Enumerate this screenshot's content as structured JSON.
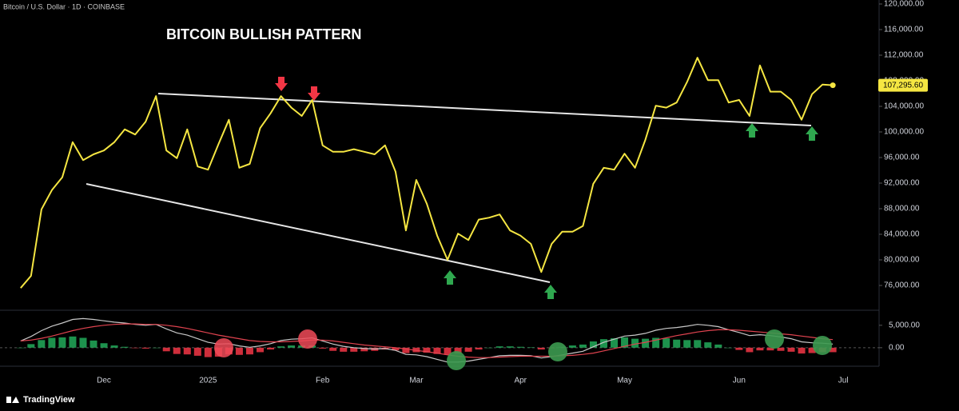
{
  "header": "Bitcoin / U.S. Dollar · 1D · COINBASE",
  "brand": "TradingView",
  "chart_data": [
    {
      "type": "line",
      "title": "BITCOIN BULLISH PATTERN",
      "categories": [
        null,
        null,
        null,
        null,
        null,
        null,
        null,
        null,
        "Dec",
        null,
        null,
        null,
        null,
        null,
        null,
        null,
        null,
        null,
        "2025",
        null,
        null,
        null,
        null,
        null,
        null,
        null,
        null,
        null,
        null,
        "Feb",
        null,
        null,
        null,
        null,
        null,
        null,
        null,
        null,
        "Mar",
        null,
        null,
        null,
        null,
        null,
        null,
        null,
        null,
        null,
        "Apr",
        null,
        null,
        null,
        null,
        null,
        null,
        null,
        null,
        null,
        "May",
        null,
        null,
        null,
        null,
        null,
        null,
        null,
        null,
        null,
        null,
        "Jun",
        null,
        null,
        null,
        null,
        null,
        null,
        null,
        null,
        null,
        "Jul"
      ],
      "series": [
        {
          "color": "#f5e642",
          "values": [
            75600,
            77500,
            87900,
            90900,
            92900,
            98400,
            95600,
            96500,
            97100,
            98400,
            100400,
            99600,
            101600,
            105600,
            97100,
            95900,
            100400,
            94600,
            94100,
            98100,
            101900,
            94400,
            95000,
            100600,
            102900,
            105600,
            103800,
            102500,
            105000,
            97900,
            96900,
            96900,
            97300,
            96900,
            96500,
            97900,
            93800,
            84600,
            92500,
            88800,
            83800,
            80000,
            84100,
            83100,
            86300,
            86600,
            87100,
            84600,
            83800,
            82500,
            78100,
            82500,
            84400,
            84400,
            85300,
            91900,
            94400,
            94100,
            96600,
            94400,
            98800,
            104100,
            103800,
            104600,
            107800,
            111600,
            108100,
            108100,
            104600,
            105000,
            102500,
            110400,
            106300,
            106300,
            105000,
            101900,
            105900,
            107400,
            107295.6,
            null
          ]
        }
      ],
      "last_label": "107,295.60",
      "ylim": [
        72500,
        120625
      ],
      "yticks": [
        {
          "value": 76000,
          "label": "76,000.00"
        },
        {
          "value": 80000,
          "label": "80,000.00"
        },
        {
          "value": 84000,
          "label": "84,000.00"
        },
        {
          "value": 88000,
          "label": "88,000.00"
        },
        {
          "value": 92000,
          "label": "92,000.00"
        },
        {
          "value": 96000,
          "label": "96,000.00"
        },
        {
          "value": 100000,
          "label": "100,000.00"
        },
        {
          "value": 104000,
          "label": "104,000.00"
        },
        {
          "value": 108000,
          "label": "108,000.00"
        },
        {
          "value": 112000,
          "label": "112,000.00"
        },
        {
          "value": 116000,
          "label": "116,000.00"
        },
        {
          "value": 120000,
          "label": "120,000.00"
        }
      ]
    },
    {
      "type": "macd",
      "series": [
        {
          "color": "#c8c8c8",
          "values": [
            1500,
            2500,
            3800,
            4800,
            5500,
            6300,
            6500,
            6300,
            6000,
            5700,
            5500,
            5200,
            5000,
            5200,
            4200,
            3300,
            2800,
            2000,
            1200,
            800,
            900,
            400,
            100,
            400,
            900,
            1600,
            1900,
            2000,
            2200,
            1500,
            800,
            300,
            0,
            -200,
            -300,
            -200,
            -600,
            -1500,
            -1600,
            -2000,
            -2600,
            -3200,
            -3200,
            -3000,
            -2600,
            -2200,
            -1800,
            -1700,
            -1700,
            -1800,
            -2300,
            -2000,
            -1600,
            -1200,
            -800,
            200,
            1200,
            1900,
            2600,
            2800,
            3200,
            3900,
            4300,
            4500,
            4800,
            5200,
            5000,
            4700,
            4000,
            3400,
            2700,
            2900,
            2700,
            2400,
            2000,
            1300,
            1100,
            1000,
            800
          ]
        },
        {
          "color": "#e0434f",
          "values": [
            1500,
            1700,
            2100,
            2600,
            3200,
            3800,
            4300,
            4700,
            5000,
            5200,
            5300,
            5300,
            5200,
            5200,
            5000,
            4700,
            4300,
            3800,
            3300,
            2800,
            2400,
            2000,
            1600,
            1400,
            1300,
            1300,
            1400,
            1500,
            1700,
            1700,
            1500,
            1200,
            900,
            600,
            400,
            200,
            0,
            -300,
            -600,
            -900,
            -1200,
            -1600,
            -1900,
            -2100,
            -2200,
            -2200,
            -2100,
            -2000,
            -1900,
            -1900,
            -1900,
            -1900,
            -1800,
            -1700,
            -1500,
            -1200,
            -700,
            -200,
            300,
            800,
            1200,
            1700,
            2200,
            2700,
            3100,
            3500,
            3800,
            4000,
            4000,
            3900,
            3700,
            3500,
            3300,
            3100,
            2900,
            2600,
            2300,
            2000,
            1800
          ]
        }
      ],
      "histogram": [
        0,
        800,
        1700,
        2200,
        2300,
        2500,
        2200,
        1600,
        1000,
        500,
        200,
        -100,
        -200,
        0,
        -800,
        -1400,
        -1500,
        -1800,
        -2100,
        -2000,
        -1500,
        -1600,
        -1500,
        -1000,
        -400,
        300,
        500,
        500,
        500,
        -200,
        -700,
        -900,
        -900,
        -800,
        -700,
        -400,
        -600,
        -1200,
        -1000,
        -1100,
        -1400,
        -1600,
        -1300,
        -900,
        -400,
        0,
        300,
        300,
        200,
        100,
        -400,
        -100,
        200,
        500,
        700,
        1400,
        1900,
        2100,
        2300,
        2000,
        2000,
        2200,
        2100,
        1800,
        1700,
        1700,
        1200,
        700,
        0,
        -500,
        -1000,
        -600,
        -600,
        -700,
        -900,
        -1300,
        -1200,
        -1000,
        -1000
      ],
      "up_color": "#22ab5a",
      "down_color": "#f23645",
      "ylim": [
        -3600,
        8000
      ],
      "yticks": [
        {
          "value": 5000,
          "label": "5,000.00"
        },
        {
          "value": 0,
          "label": "0.00"
        }
      ]
    }
  ]
}
